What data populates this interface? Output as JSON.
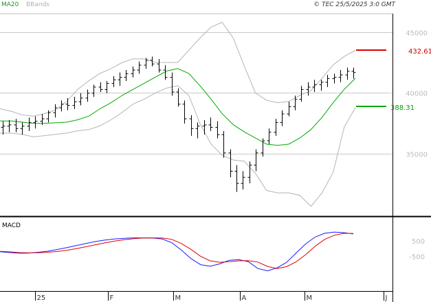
{
  "header": {
    "legend_ma": "MA20",
    "legend_bb": "BBands",
    "copyright": "© TEC 25/5/2025 3:0 GMT"
  },
  "colors": {
    "price_bars": "#000000",
    "ma20": "#00aa00",
    "bbands": "#b4b4b4",
    "macd_line": "#1a1aff",
    "signal_line": "#dd0000",
    "resistance_marker": "#dd0000",
    "support_marker": "#00aa00"
  },
  "markers": {
    "resistance_label": "432.61",
    "support_label": "388.31"
  },
  "macd_panel": {
    "title": "MACD"
  },
  "chart_data": [
    {
      "type": "ohlc",
      "title": "",
      "x_tick_labels": [
        "25",
        "F",
        "M",
        "A",
        "M",
        "J"
      ],
      "y_tick_labels": [
        "45000",
        "40000",
        "35000"
      ],
      "ylim": [
        30000,
        46500
      ],
      "grid": true,
      "resistance_level": 43261,
      "support_level": 38831,
      "series": [
        {
          "name": "MA20",
          "values": [
            37700,
            37700,
            37600,
            37500,
            37500,
            37550,
            37600,
            37800,
            38100,
            38700,
            39200,
            39800,
            40300,
            40800,
            41300,
            41800,
            42000,
            41600,
            40600,
            39500,
            38300,
            37400,
            36800,
            36300,
            35800,
            35700,
            35800,
            36300,
            37000,
            38000,
            39200,
            40300,
            41200
          ]
        },
        {
          "name": "BBands upper",
          "values": [
            38700,
            38500,
            38200,
            38100,
            38300,
            38600,
            39300,
            40300,
            41000,
            41600,
            42000,
            42500,
            42800,
            42800,
            42500,
            42500,
            42500,
            43500,
            44500,
            45400,
            45800,
            44500,
            42200,
            40000,
            39400,
            39200,
            39300,
            39800,
            40200,
            41200,
            42300,
            43000,
            43500
          ]
        },
        {
          "name": "BBands lower",
          "values": [
            36700,
            36700,
            36600,
            36400,
            36500,
            36600,
            36700,
            36900,
            37000,
            37300,
            37800,
            38400,
            39100,
            39500,
            40000,
            40400,
            40600,
            39800,
            37500,
            35800,
            34900,
            34500,
            34400,
            33400,
            32000,
            31800,
            31800,
            31600,
            30700,
            31800,
            33500,
            37200,
            38800
          ]
        }
      ],
      "ohlc_points": [
        [
          37180,
          37680,
          36580,
          37280
        ],
        [
          37280,
          37780,
          36780,
          37380
        ],
        [
          37380,
          37880,
          36780,
          37080
        ],
        [
          37080,
          37580,
          36580,
          37280
        ],
        [
          37280,
          37980,
          36880,
          37580
        ],
        [
          37580,
          38080,
          37080,
          37680
        ],
        [
          37680,
          38280,
          37380,
          37880
        ],
        [
          37880,
          38580,
          37580,
          38380
        ],
        [
          38380,
          39080,
          37980,
          38780
        ],
        [
          38780,
          39380,
          38480,
          39080
        ],
        [
          39080,
          39580,
          38580,
          38980
        ],
        [
          38980,
          39680,
          38680,
          39280
        ],
        [
          39280,
          39980,
          38980,
          39580
        ],
        [
          39580,
          40280,
          39280,
          39980
        ],
        [
          39980,
          40680,
          39680,
          40480
        ],
        [
          40480,
          40880,
          40080,
          40280
        ],
        [
          40280,
          40980,
          39980,
          40780
        ],
        [
          40780,
          41380,
          40480,
          41080
        ],
        [
          41080,
          41680,
          40580,
          41280
        ],
        [
          41280,
          41880,
          40980,
          41580
        ],
        [
          41580,
          42180,
          41280,
          41880
        ],
        [
          41880,
          42580,
          41580,
          42280
        ],
        [
          42280,
          42880,
          41980,
          42680
        ],
        [
          42680,
          42980,
          42180,
          42380
        ],
        [
          42380,
          42780,
          41680,
          41880
        ],
        [
          41880,
          42280,
          41080,
          41280
        ],
        [
          41280,
          41680,
          39780,
          40080
        ],
        [
          40080,
          40380,
          38880,
          39080
        ],
        [
          39080,
          39380,
          37480,
          37880
        ],
        [
          37880,
          38180,
          36480,
          37080
        ],
        [
          37080,
          37580,
          36280,
          37280
        ],
        [
          37280,
          37780,
          36580,
          37380
        ],
        [
          37380,
          37980,
          36880,
          37180
        ],
        [
          37180,
          37680,
          36280,
          36580
        ],
        [
          36580,
          36880,
          34680,
          35080
        ],
        [
          35080,
          35380,
          33080,
          33580
        ],
        [
          33580,
          34080,
          31880,
          32580
        ],
        [
          32580,
          33580,
          32080,
          33080
        ],
        [
          33080,
          34380,
          32580,
          34080
        ],
        [
          34080,
          35380,
          33580,
          35080
        ],
        [
          35080,
          36280,
          34780,
          36080
        ],
        [
          36080,
          37080,
          35780,
          36780
        ],
        [
          36780,
          37880,
          36480,
          37580
        ],
        [
          37580,
          38580,
          37280,
          38280
        ],
        [
          38280,
          39280,
          38080,
          38880
        ],
        [
          38880,
          39780,
          38580,
          39480
        ],
        [
          39480,
          40580,
          39280,
          40280
        ],
        [
          40280,
          40880,
          39780,
          40480
        ],
        [
          40480,
          41080,
          40080,
          40680
        ],
        [
          40680,
          41080,
          40180,
          40880
        ],
        [
          40880,
          41480,
          40480,
          41180
        ],
        [
          41180,
          41580,
          40780,
          41280
        ],
        [
          41280,
          41880,
          40880,
          41480
        ],
        [
          41480,
          42080,
          41080,
          41780
        ],
        [
          41780,
          42080,
          41180,
          41680
        ]
      ]
    },
    {
      "type": "line",
      "title": "MACD",
      "y_tick_labels": [
        "500",
        "-500"
      ],
      "ylim": [
        -2500,
        1800
      ],
      "series": [
        {
          "name": "MACD",
          "values": [
            -200,
            -260,
            -300,
            -290,
            -240,
            -170,
            -60,
            60,
            200,
            330,
            460,
            560,
            630,
            670,
            700,
            700,
            690,
            620,
            380,
            -100,
            -650,
            -1050,
            -1150,
            -1000,
            -760,
            -720,
            -850,
            -1300,
            -1450,
            -1260,
            -900,
            -300,
            300,
            750,
            1000,
            1080,
            1040,
            960
          ]
        },
        {
          "name": "Signal",
          "values": [
            -180,
            -210,
            -260,
            -280,
            -270,
            -240,
            -190,
            -110,
            0,
            120,
            250,
            380,
            490,
            580,
            650,
            690,
            700,
            690,
            600,
            330,
            -50,
            -500,
            -800,
            -890,
            -850,
            -800,
            -790,
            -880,
            -1160,
            -1300,
            -1180,
            -870,
            -400,
            150,
            600,
            870,
            1000,
            990
          ]
        }
      ]
    }
  ]
}
